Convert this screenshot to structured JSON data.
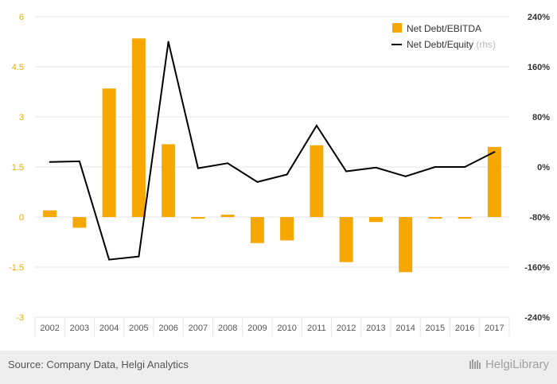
{
  "chart_data": {
    "type": "bar+line",
    "categories": [
      "2002",
      "2003",
      "2004",
      "2005",
      "2006",
      "2007",
      "2008",
      "2009",
      "2010",
      "2011",
      "2012",
      "2013",
      "2014",
      "2015",
      "2016",
      "2017"
    ],
    "series": [
      {
        "name": "Net Debt/EBITDA",
        "type": "bar",
        "axis": "left",
        "color": "#f7a800",
        "values": [
          0.2,
          -0.32,
          3.85,
          5.35,
          2.18,
          -0.05,
          0.07,
          -0.78,
          -0.7,
          2.15,
          -1.35,
          -0.15,
          -1.65,
          -0.05,
          -0.05,
          2.1
        ]
      },
      {
        "name": "Net Debt/Equity",
        "axis_note": "(rhs)",
        "type": "line",
        "axis": "right",
        "color": "#000000",
        "values": [
          8,
          9,
          -148,
          -143,
          200,
          -2,
          6,
          -24,
          -12,
          66,
          -7,
          -1,
          -15,
          0,
          0,
          24
        ]
      }
    ],
    "y_left": {
      "range": [
        -3,
        6
      ],
      "ticks": [
        "6",
        "4.5",
        "3",
        "1.5",
        "0",
        "-1.5",
        "-3"
      ]
    },
    "y_right": {
      "range": [
        -240,
        240
      ],
      "ticks": [
        "240%",
        "160%",
        "80%",
        "0%",
        "-80%",
        "-160%",
        "-240%"
      ]
    },
    "grid": true,
    "legend_position": "top-right"
  },
  "footer": {
    "source": "Source: Company Data, Helgi Analytics",
    "brand": "HelgiLibrary"
  }
}
